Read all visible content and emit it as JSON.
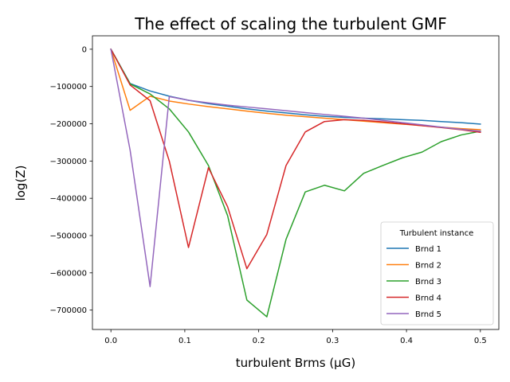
{
  "chart_data": {
    "type": "line",
    "title": "The effect of scaling the turbulent GMF",
    "xlabel": "turbulent Brms (μG)",
    "ylabel": "log(Z)",
    "xlim": [
      -0.025,
      0.525
    ],
    "ylim": [
      -752000,
      36000
    ],
    "xticks": [
      0.0,
      0.1,
      0.2,
      0.3,
      0.4,
      0.5
    ],
    "xtick_labels": [
      "0.0",
      "0.1",
      "0.2",
      "0.3",
      "0.4",
      "0.5"
    ],
    "yticks": [
      0,
      -100000,
      -200000,
      -300000,
      -400000,
      -500000,
      -600000,
      -700000
    ],
    "ytick_labels": [
      "0",
      "−100000",
      "−200000",
      "−300000",
      "−400000",
      "−500000",
      "−600000",
      "−700000"
    ],
    "grid": false,
    "legend": {
      "title": "Turbulent instance",
      "placement": "lower right"
    },
    "series": [
      {
        "name": "Brnd 1",
        "color": "#1f77b4",
        "x": [
          0.0,
          0.026,
          0.053,
          0.079,
          0.105,
          0.132,
          0.158,
          0.184,
          0.211,
          0.237,
          0.263,
          0.289,
          0.316,
          0.342,
          0.368,
          0.395,
          0.421,
          0.447,
          0.474,
          0.5
        ],
        "y": [
          0,
          -92000,
          -112000,
          -126000,
          -137000,
          -146000,
          -153000,
          -160000,
          -166000,
          -171000,
          -176000,
          -180000,
          -183000,
          -185000,
          -187000,
          -189000,
          -191000,
          -194000,
          -197000,
          -201000
        ]
      },
      {
        "name": "Brnd 2",
        "color": "#ff7f0e",
        "x": [
          0.0,
          0.026,
          0.053,
          0.079,
          0.105,
          0.132,
          0.158,
          0.184,
          0.211,
          0.237,
          0.263,
          0.289,
          0.316,
          0.342,
          0.368,
          0.395,
          0.421,
          0.447,
          0.474,
          0.5
        ],
        "y": [
          0,
          -164000,
          -126000,
          -139000,
          -147000,
          -154000,
          -160000,
          -166000,
          -172000,
          -177000,
          -181000,
          -185000,
          -189000,
          -193000,
          -197000,
          -201000,
          -205000,
          -209000,
          -213000,
          -216000
        ]
      },
      {
        "name": "Brnd 3",
        "color": "#2ca02c",
        "x": [
          0.0,
          0.026,
          0.053,
          0.079,
          0.105,
          0.132,
          0.158,
          0.184,
          0.211,
          0.237,
          0.263,
          0.289,
          0.316,
          0.342,
          0.368,
          0.395,
          0.421,
          0.447,
          0.474,
          0.5
        ],
        "y": [
          0,
          -93000,
          -120000,
          -160000,
          -222000,
          -312000,
          -447000,
          -673000,
          -718000,
          -510000,
          -383000,
          -365000,
          -380000,
          -333000,
          -312000,
          -291000,
          -276000,
          -248000,
          -230000,
          -220000
        ]
      },
      {
        "name": "Brnd 4",
        "color": "#d62728",
        "x": [
          0.0,
          0.026,
          0.053,
          0.079,
          0.105,
          0.132,
          0.158,
          0.184,
          0.211,
          0.237,
          0.263,
          0.289,
          0.316,
          0.342,
          0.368,
          0.395,
          0.421,
          0.447,
          0.474,
          0.5
        ],
        "y": [
          0,
          -96000,
          -138000,
          -300000,
          -532000,
          -318000,
          -423000,
          -589000,
          -497000,
          -312000,
          -222000,
          -194000,
          -189000,
          -191000,
          -195000,
          -200000,
          -205000,
          -210000,
          -216000,
          -223000
        ]
      },
      {
        "name": "Brnd 5",
        "color": "#9467bd",
        "x": [
          0.0,
          0.026,
          0.053,
          0.079,
          0.105,
          0.132,
          0.158,
          0.184,
          0.211,
          0.237,
          0.263,
          0.289,
          0.316,
          0.342,
          0.368,
          0.395,
          0.421,
          0.447,
          0.474,
          0.5
        ],
        "y": [
          0,
          -271000,
          -637000,
          -127000,
          -137000,
          -144000,
          -150000,
          -155000,
          -160000,
          -165000,
          -170000,
          -175000,
          -180000,
          -185000,
          -191000,
          -197000,
          -203000,
          -209000,
          -215000,
          -220000
        ]
      }
    ]
  }
}
